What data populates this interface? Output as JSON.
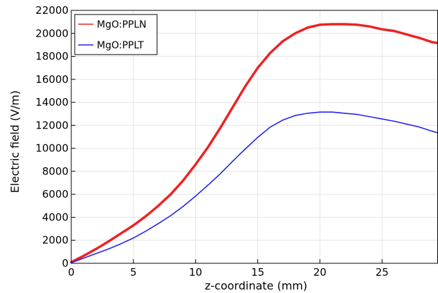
{
  "chart_data": {
    "type": "line",
    "title": "",
    "xlabel": "z-coordinate (mm)",
    "ylabel": "Electric field (V/m)",
    "xlim": [
      0,
      29.5
    ],
    "ylim": [
      0,
      22000
    ],
    "xticks": [
      0,
      5,
      10,
      15,
      20,
      25
    ],
    "yticks": [
      0,
      2000,
      4000,
      6000,
      8000,
      10000,
      12000,
      14000,
      16000,
      18000,
      20000,
      22000
    ],
    "grid": true,
    "legend_position": "top-left",
    "series": [
      {
        "name": "MgO:PPLN",
        "color": "#ee2222",
        "x": [
          0,
          1,
          2,
          3,
          4,
          5,
          6,
          7,
          8,
          9,
          10,
          11,
          12,
          13,
          14,
          15,
          16,
          17,
          18,
          19,
          20,
          21,
          22,
          23,
          24,
          25,
          26,
          27,
          28,
          29,
          29.5
        ],
        "y": [
          100,
          650,
          1250,
          1900,
          2600,
          3300,
          4100,
          5000,
          6000,
          7200,
          8600,
          10100,
          11800,
          13600,
          15400,
          17000,
          18300,
          19300,
          20000,
          20500,
          20750,
          20800,
          20800,
          20750,
          20600,
          20350,
          20200,
          19900,
          19600,
          19250,
          19150
        ]
      },
      {
        "name": "MgO:PPLT",
        "color": "#2222ee",
        "x": [
          0,
          1,
          2,
          3,
          4,
          5,
          6,
          7,
          8,
          9,
          10,
          11,
          12,
          13,
          14,
          15,
          16,
          17,
          18,
          19,
          20,
          21,
          22,
          23,
          24,
          25,
          26,
          27,
          28,
          29,
          29.5
        ],
        "y": [
          50,
          450,
          850,
          1250,
          1700,
          2200,
          2800,
          3450,
          4150,
          4950,
          5850,
          6800,
          7800,
          8900,
          9950,
          10950,
          11850,
          12450,
          12850,
          13050,
          13150,
          13150,
          13050,
          12950,
          12750,
          12550,
          12350,
          12100,
          11850,
          11500,
          11350
        ]
      }
    ]
  }
}
